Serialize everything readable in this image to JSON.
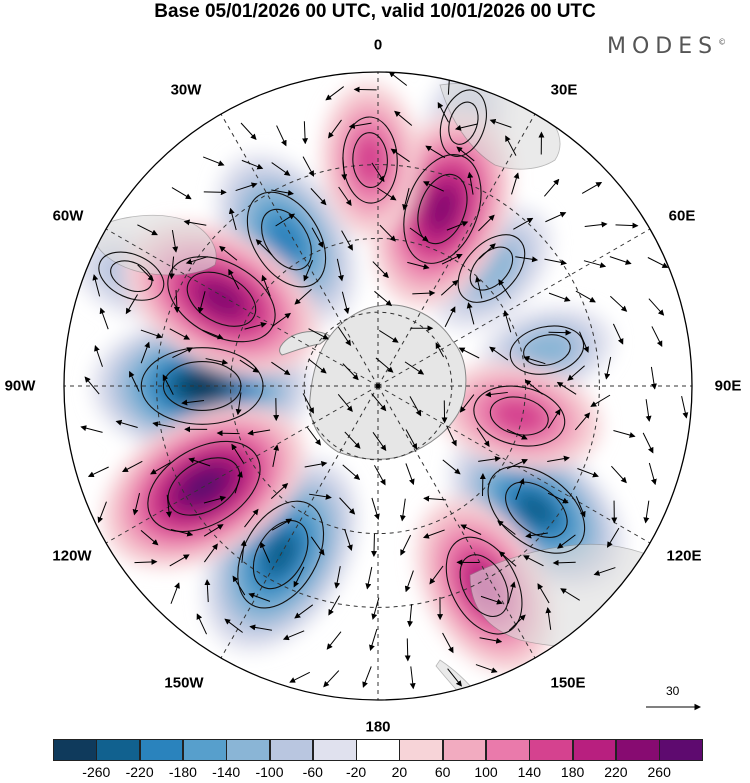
{
  "title": "Base 05/01/2026 00 UTC, valid 10/01/2026 00 UTC",
  "brand": "MODES",
  "brand_mark": "©",
  "longitude_labels": [
    "0",
    "30E",
    "60E",
    "90E",
    "120E",
    "150E",
    "180",
    "150W",
    "120W",
    "90W",
    "60W",
    "30W"
  ],
  "reference_vector_label": "30",
  "colorbar": {
    "ticks": [
      "-260",
      "-220",
      "-180",
      "-140",
      "-100",
      "-60",
      "-20",
      "20",
      "60",
      "100",
      "140",
      "180",
      "220",
      "260"
    ],
    "colors": [
      "#0f3a5c",
      "#11618f",
      "#2a83bd",
      "#579fcc",
      "#8ab5d6",
      "#b9c6e0",
      "#e0e1ee",
      "#ffffff",
      "#f7d4d8",
      "#f2abc0",
      "#ea7aab",
      "#d5428f",
      "#b81f7f",
      "#870b71",
      "#5e0a6f"
    ]
  },
  "features": {
    "lows": [
      {
        "name": "low-90w",
        "lon": -90,
        "lat_norm": 0.56,
        "value": -260
      },
      {
        "name": "low-135w",
        "lon": -150,
        "lat_norm": 0.62,
        "value": -240
      },
      {
        "name": "low-60w",
        "lon": -32,
        "lat_norm": 0.55,
        "value": -200
      },
      {
        "name": "low-120e",
        "lon": 128,
        "lat_norm": 0.64,
        "value": -220
      },
      {
        "name": "low-45e",
        "lon": 44,
        "lat_norm": 0.52,
        "value": -120
      },
      {
        "name": "low-15e",
        "lon": 18,
        "lat_norm": 0.88,
        "value": -80
      },
      {
        "name": "low-75w",
        "lon": -66,
        "lat_norm": 0.86,
        "value": -80
      },
      {
        "name": "low-70e",
        "lon": 78,
        "lat_norm": 0.55,
        "value": -100
      }
    ],
    "highs": [
      {
        "name": "high-65w",
        "lon": -61,
        "lat_norm": 0.57,
        "value": 240
      },
      {
        "name": "high-120w",
        "lon": -120,
        "lat_norm": 0.64,
        "value": 260
      },
      {
        "name": "high-20e",
        "lon": 20,
        "lat_norm": 0.6,
        "value": 230
      },
      {
        "name": "high-150e",
        "lon": 152,
        "lat_norm": 0.72,
        "value": 200
      },
      {
        "name": "high-100e",
        "lon": 102,
        "lat_norm": 0.46,
        "value": 160
      },
      {
        "name": "high-0",
        "lon": -2,
        "lat_norm": 0.72,
        "value": 140
      }
    ]
  }
}
